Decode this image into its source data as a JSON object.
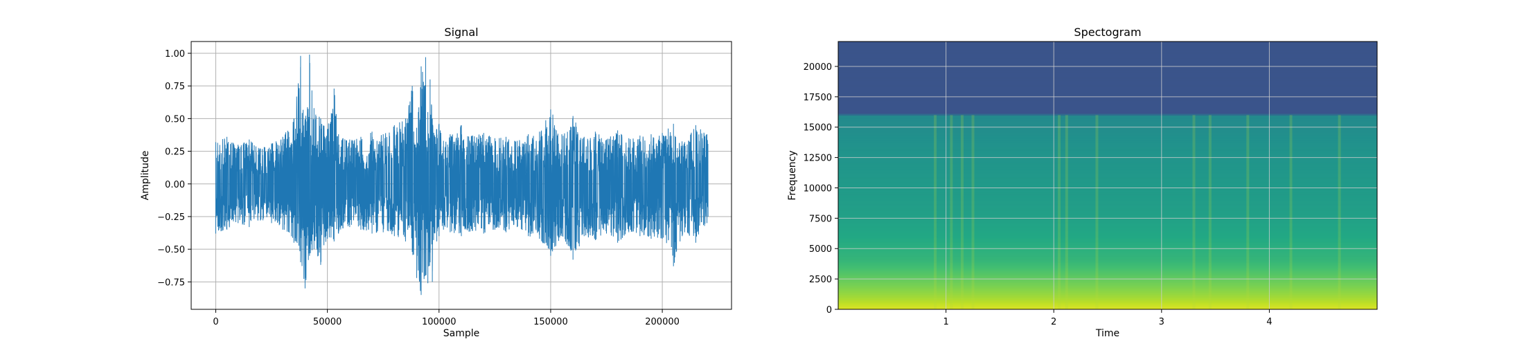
{
  "chart_data": [
    {
      "type": "line",
      "title": "Signal",
      "xlabel": "Sample",
      "ylabel": "Amplitude",
      "xlim": [
        -11000,
        231000
      ],
      "ylim": [
        -0.96,
        1.09
      ],
      "xticks": [
        0,
        50000,
        100000,
        150000,
        200000
      ],
      "xtick_labels": [
        "0",
        "50000",
        "100000",
        "150000",
        "200000"
      ],
      "yticks": [
        -0.75,
        -0.5,
        -0.25,
        0.0,
        0.25,
        0.5,
        0.75,
        1.0
      ],
      "ytick_labels": [
        "−0.75",
        "−0.50",
        "−0.25",
        "0.00",
        "0.25",
        "0.50",
        "0.75",
        "1.00"
      ],
      "grid": true,
      "color": "#1f77b4",
      "n_samples": 220500,
      "envelope": {
        "x": [
          0,
          5000,
          10000,
          15000,
          20000,
          25000,
          30000,
          35000,
          38000,
          40000,
          42000,
          44000,
          47000,
          50000,
          53000,
          55000,
          57000,
          60000,
          65000,
          70000,
          75000,
          80000,
          85000,
          88000,
          90000,
          92000,
          94000,
          95000,
          96000,
          97000,
          99000,
          100000,
          102000,
          105000,
          110000,
          115000,
          120000,
          125000,
          130000,
          135000,
          140000,
          145000,
          150000,
          155000,
          160000,
          165000,
          170000,
          175000,
          180000,
          185000,
          190000,
          195000,
          200000,
          205000,
          210000,
          215000,
          220000
        ],
        "max": [
          0.32,
          0.36,
          0.3,
          0.34,
          0.27,
          0.31,
          0.36,
          0.5,
          0.98,
          0.49,
          0.99,
          0.58,
          0.5,
          0.42,
          0.73,
          0.38,
          0.35,
          0.34,
          0.36,
          0.4,
          0.38,
          0.45,
          0.5,
          0.75,
          0.43,
          0.9,
          0.97,
          0.55,
          0.8,
          0.5,
          0.42,
          0.46,
          0.33,
          0.38,
          0.45,
          0.37,
          0.39,
          0.35,
          0.36,
          0.33,
          0.38,
          0.4,
          0.57,
          0.38,
          0.52,
          0.36,
          0.4,
          0.34,
          0.41,
          0.35,
          0.37,
          0.38,
          0.39,
          0.46,
          0.32,
          0.45,
          0.38
        ],
        "min": [
          -0.38,
          -0.35,
          -0.3,
          -0.33,
          -0.28,
          -0.3,
          -0.35,
          -0.45,
          -0.6,
          -0.8,
          -0.55,
          -0.5,
          -0.62,
          -0.42,
          -0.44,
          -0.38,
          -0.34,
          -0.33,
          -0.35,
          -0.38,
          -0.37,
          -0.4,
          -0.44,
          -0.52,
          -0.72,
          -0.85,
          -0.7,
          -0.76,
          -0.6,
          -0.75,
          -0.44,
          -0.4,
          -0.35,
          -0.37,
          -0.4,
          -0.36,
          -0.38,
          -0.35,
          -0.37,
          -0.33,
          -0.4,
          -0.42,
          -0.55,
          -0.4,
          -0.58,
          -0.4,
          -0.43,
          -0.38,
          -0.45,
          -0.37,
          -0.4,
          -0.42,
          -0.42,
          -0.63,
          -0.37,
          -0.45,
          -0.3
        ]
      }
    },
    {
      "type": "heatmap",
      "title": "Spectogram",
      "xlabel": "Time",
      "ylabel": "Frequency",
      "xlim": [
        0,
        5.0
      ],
      "ylim": [
        0,
        22050
      ],
      "xticks": [
        1,
        2,
        3,
        4
      ],
      "xtick_labels": [
        "1",
        "2",
        "3",
        "4"
      ],
      "yticks": [
        0,
        2500,
        5000,
        7500,
        10000,
        12500,
        15000,
        17500,
        20000
      ],
      "ytick_labels": [
        "0",
        "2500",
        "5000",
        "7500",
        "10000",
        "12500",
        "15000",
        "17500",
        "20000"
      ],
      "grid": true,
      "colormap": "viridis",
      "cutoff_frequency": 16000,
      "band_levels": {
        "frequency": [
          0,
          1000,
          2500,
          4000,
          6000,
          8000,
          11000,
          14000,
          16000,
          16100,
          22050
        ],
        "level": [
          0.95,
          0.86,
          0.76,
          0.66,
          0.6,
          0.56,
          0.53,
          0.5,
          0.47,
          0.26,
          0.26
        ]
      },
      "time_onsets": [
        0.9,
        1.05,
        1.15,
        1.25,
        2.05,
        2.12,
        2.4,
        3.3,
        3.45,
        3.8,
        4.2,
        4.65
      ]
    }
  ]
}
